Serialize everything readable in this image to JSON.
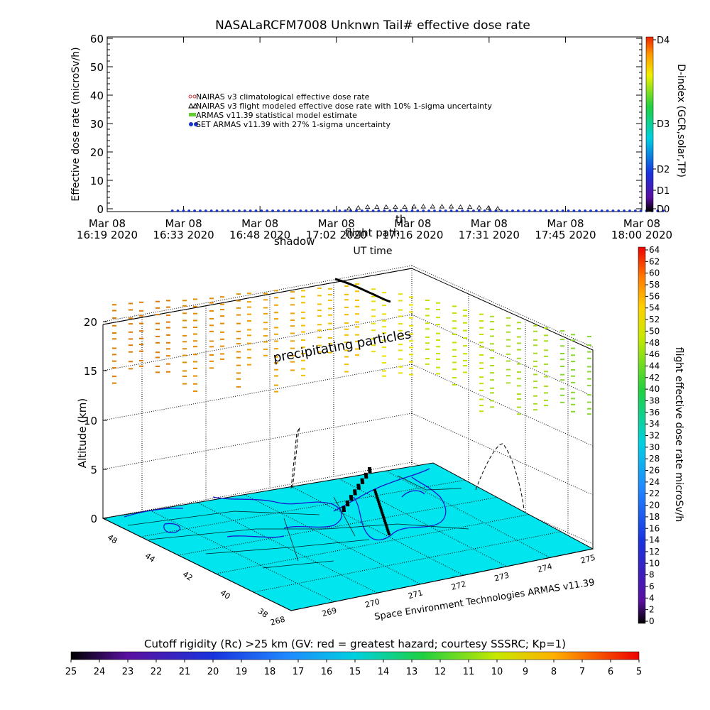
{
  "chart_data": [
    {
      "type": "scatter",
      "title": "NASALaRCFM7008  Unknwn Tail#  effective dose rate",
      "ylabel": "Effective dose rate (microSv/h)",
      "xlabel": "UT time",
      "ylim": [
        0,
        60
      ],
      "yticks": [
        "0",
        "10",
        "20",
        "30",
        "40",
        "50",
        "60"
      ],
      "xticks": [
        {
          "date": "Mar 08",
          "time": "16:19 2020"
        },
        {
          "date": "Mar 08",
          "time": "16:33 2020"
        },
        {
          "date": "Mar 08",
          "time": "16:48 2020"
        },
        {
          "date": "Mar 08",
          "time": "17:02 2020"
        },
        {
          "date": "Mar 08",
          "time": "17:16 2020"
        },
        {
          "date": "Mar 08",
          "time": "17:31 2020"
        },
        {
          "date": "Mar 08",
          "time": "17:45 2020"
        },
        {
          "date": "Mar 08",
          "time": "18:00 2020"
        }
      ],
      "legend": [
        {
          "label": "NAIRAS v3 climatological effective dose rate",
          "color": "#cc3333"
        },
        {
          "label": "NAIRAS v3 flight modeled effective dose rate with 10% 1-sigma uncertainty",
          "color": "#000000"
        },
        {
          "label": "ARMAS v11.39 statistical model estimate",
          "color": "#66cc33"
        },
        {
          "label": "SET ARMAS v11.39 with 27% 1-sigma uncertainty",
          "color": "#1a33cc"
        }
      ],
      "series": [
        {
          "name": "SET ARMAS v11.39 with 27% 1-sigma uncertainty",
          "x_range_minutes": [
            14,
            120
          ],
          "value": 0.2
        },
        {
          "name": "NAIRAS v3 flight modeled effective dose rate with 10% 1-sigma uncertainty",
          "x_minutes": [
            52,
            54,
            56,
            58,
            60,
            62,
            64,
            66,
            68,
            70,
            72,
            74,
            76,
            78,
            80,
            82,
            84
          ],
          "values": [
            0.5,
            1.0,
            1.5,
            1.5,
            1.5,
            1.5,
            1.5,
            1.8,
            1.8,
            1.8,
            1.8,
            1.8,
            1.5,
            1.5,
            1.2,
            1.0,
            0.5
          ]
        }
      ],
      "annotations": [
        "th",
        "shadow",
        "flight path"
      ],
      "colorbar": {
        "label": "D-index (GCR,solar,TP)",
        "ticks": [
          "D4",
          "D3",
          "D2",
          "D1",
          "D0"
        ]
      }
    },
    {
      "type": "scatter",
      "zlabel": "Altitude (km)",
      "zticks": [
        "0",
        "5",
        "10",
        "15",
        "20"
      ],
      "lat_ticks": [
        "48",
        "44",
        "42",
        "40",
        "38"
      ],
      "lon_ticks": [
        "268",
        "269",
        "270",
        "271",
        "272",
        "273",
        "274",
        "275"
      ],
      "annotation": "precipitating particles",
      "credit": "Space Environment Technologies ARMAS v11.39",
      "colorbar": {
        "label": "flight effective dose rate microSv/h",
        "ticks": [
          "0",
          "2",
          "4",
          "6",
          "8",
          "10",
          "12",
          "14",
          "16",
          "18",
          "20",
          "22",
          "24",
          "26",
          "28",
          "30",
          "32",
          "34",
          "36",
          "38",
          "40",
          "42",
          "44",
          "46",
          "48",
          "50",
          "52",
          "54",
          "56",
          "58",
          "60",
          "62",
          "64"
        ]
      }
    }
  ],
  "cutoff_bar": {
    "label": "Cutoff rigidity (Rc) >25 km (GV: red = greatest hazard; courtesy SSSRC; Kp=1)",
    "ticks": [
      "25",
      "24",
      "23",
      "22",
      "21",
      "20",
      "19",
      "18",
      "17",
      "16",
      "15",
      "14",
      "13",
      "12",
      "11",
      "10",
      "9",
      "8",
      "7",
      "6",
      "5"
    ]
  },
  "colors": {
    "ground": "#00e5ee",
    "flight": "#000000",
    "coast": "#1a1acc"
  }
}
